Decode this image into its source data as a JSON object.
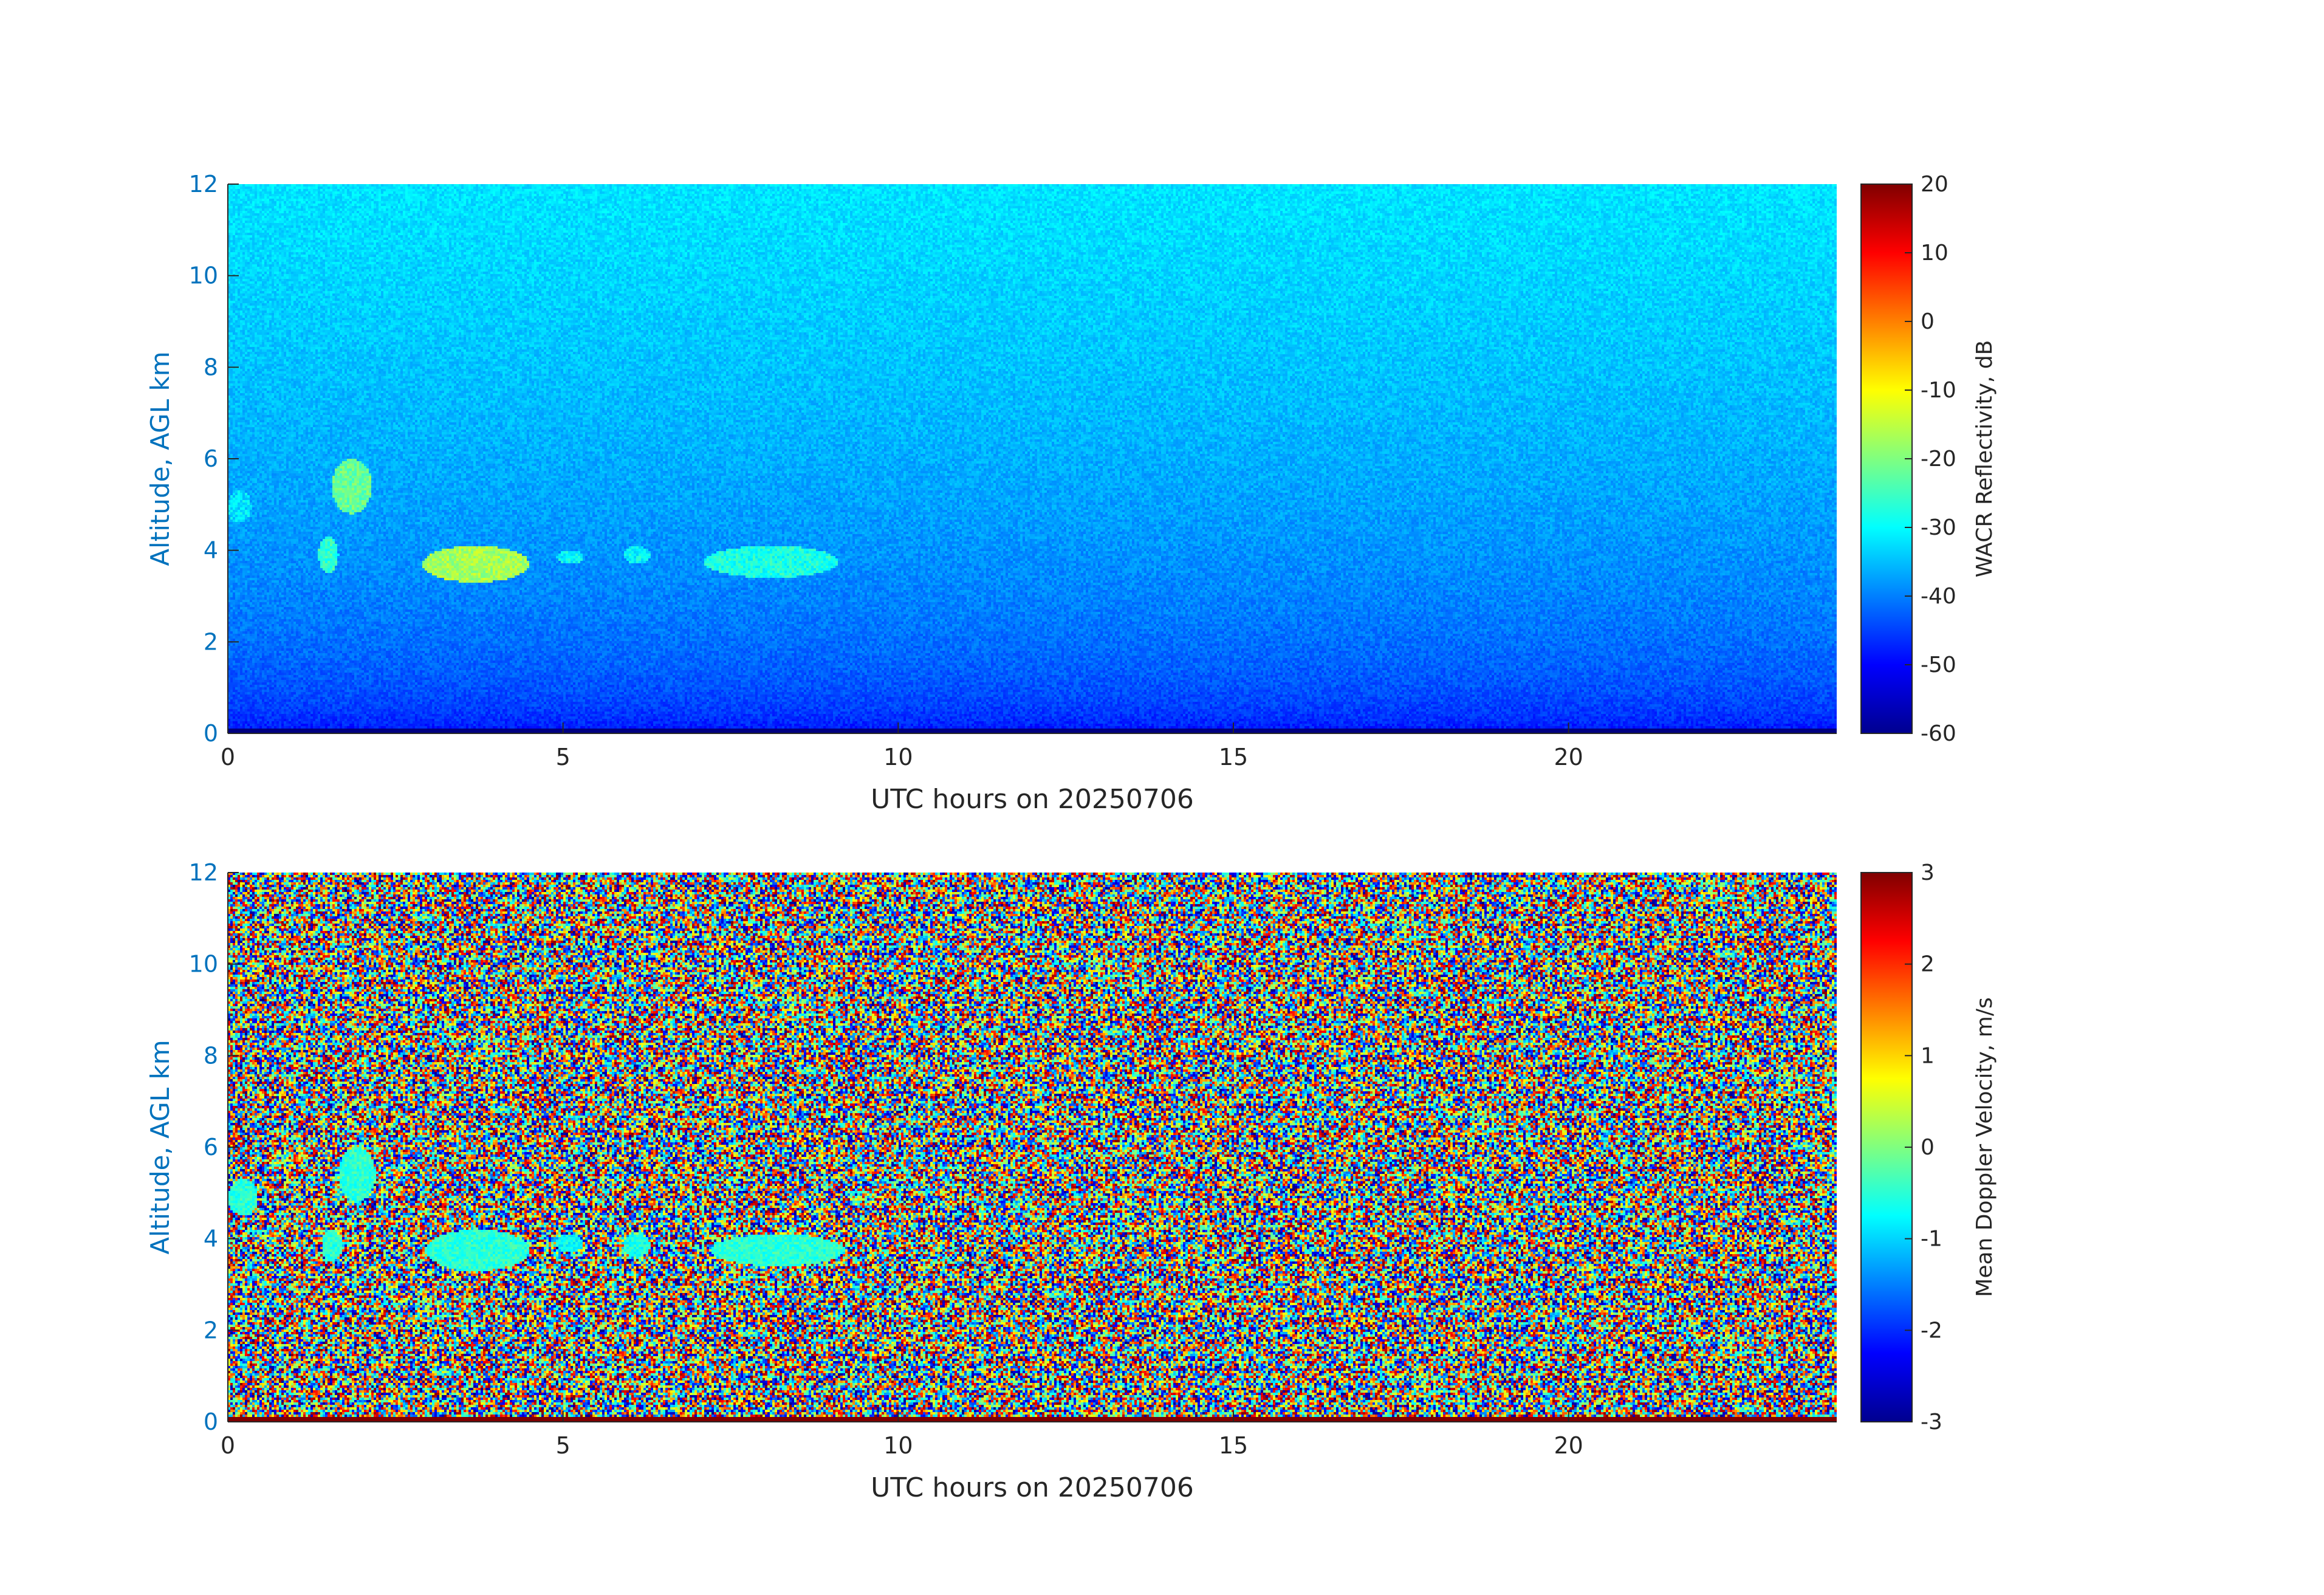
{
  "chart_data": [
    {
      "type": "heatmap",
      "variable": "WACR Reflectivity, dB",
      "xlabel": "UTC hours on 20250706",
      "ylabel": "Altitude, AGL km",
      "xlim": [
        0,
        24
      ],
      "ylim": [
        0,
        12
      ],
      "xticks": [
        0,
        5,
        10,
        15,
        20
      ],
      "yticks": [
        0,
        2,
        4,
        6,
        8,
        10,
        12
      ],
      "colorbar": {
        "label": "WACR Reflectivity, dB",
        "range": [
          -60,
          20
        ],
        "ticks": [
          20,
          10,
          0,
          -10,
          -20,
          -30,
          -40,
          -50,
          -60
        ],
        "colormap": "jet"
      },
      "background": {
        "description_values": "noise floor",
        "value_top": -32,
        "value_mid": -37,
        "value_bottom": -52
      },
      "features": [
        {
          "x": [
            0.0,
            0.35
          ],
          "y": [
            4.6,
            5.3
          ],
          "value": -32
        },
        {
          "x": [
            1.55,
            2.15
          ],
          "y": [
            4.8,
            6.0
          ],
          "value": -22
        },
        {
          "x": [
            1.35,
            1.65
          ],
          "y": [
            3.5,
            4.3
          ],
          "value": -26
        },
        {
          "x": [
            2.9,
            4.5
          ],
          "y": [
            3.3,
            4.1
          ],
          "value": -17
        },
        {
          "x": [
            4.9,
            5.3
          ],
          "y": [
            3.7,
            4.0
          ],
          "value": -30
        },
        {
          "x": [
            5.9,
            6.3
          ],
          "y": [
            3.7,
            4.1
          ],
          "value": -30
        },
        {
          "x": [
            7.1,
            9.1
          ],
          "y": [
            3.4,
            4.1
          ],
          "value": -28
        }
      ]
    },
    {
      "type": "heatmap",
      "variable": "Mean Doppler Velocity, m/s",
      "xlabel": "UTC hours on 20250706",
      "ylabel": "Altitude, AGL km",
      "xlim": [
        0,
        24
      ],
      "ylim": [
        0,
        12
      ],
      "xticks": [
        0,
        5,
        10,
        15,
        20
      ],
      "yticks": [
        0,
        2,
        4,
        6,
        8,
        10,
        12
      ],
      "colorbar": {
        "label": "Mean Doppler Velocity, m/s",
        "range": [
          -3,
          3
        ],
        "ticks": [
          3,
          2,
          1,
          0,
          -1,
          -2,
          -3
        ],
        "colormap": "jet"
      },
      "background": {
        "description_values": "random noise",
        "value_range": [
          -3,
          3
        ]
      },
      "features": [
        {
          "x": [
            0.0,
            0.45
          ],
          "y": [
            4.5,
            5.3
          ],
          "value": -0.5
        },
        {
          "x": [
            1.65,
            2.2
          ],
          "y": [
            4.8,
            6.0
          ],
          "value": -0.5
        },
        {
          "x": [
            1.4,
            1.7
          ],
          "y": [
            3.5,
            4.2
          ],
          "value": -0.5
        },
        {
          "x": [
            2.95,
            4.5
          ],
          "y": [
            3.3,
            4.2
          ],
          "value": -0.5
        },
        {
          "x": [
            4.9,
            5.3
          ],
          "y": [
            3.7,
            4.1
          ],
          "value": -0.7
        },
        {
          "x": [
            5.9,
            6.3
          ],
          "y": [
            3.6,
            4.1
          ],
          "value": -0.6
        },
        {
          "x": [
            7.2,
            9.2
          ],
          "y": [
            3.4,
            4.1
          ],
          "value": -0.5
        }
      ]
    }
  ]
}
